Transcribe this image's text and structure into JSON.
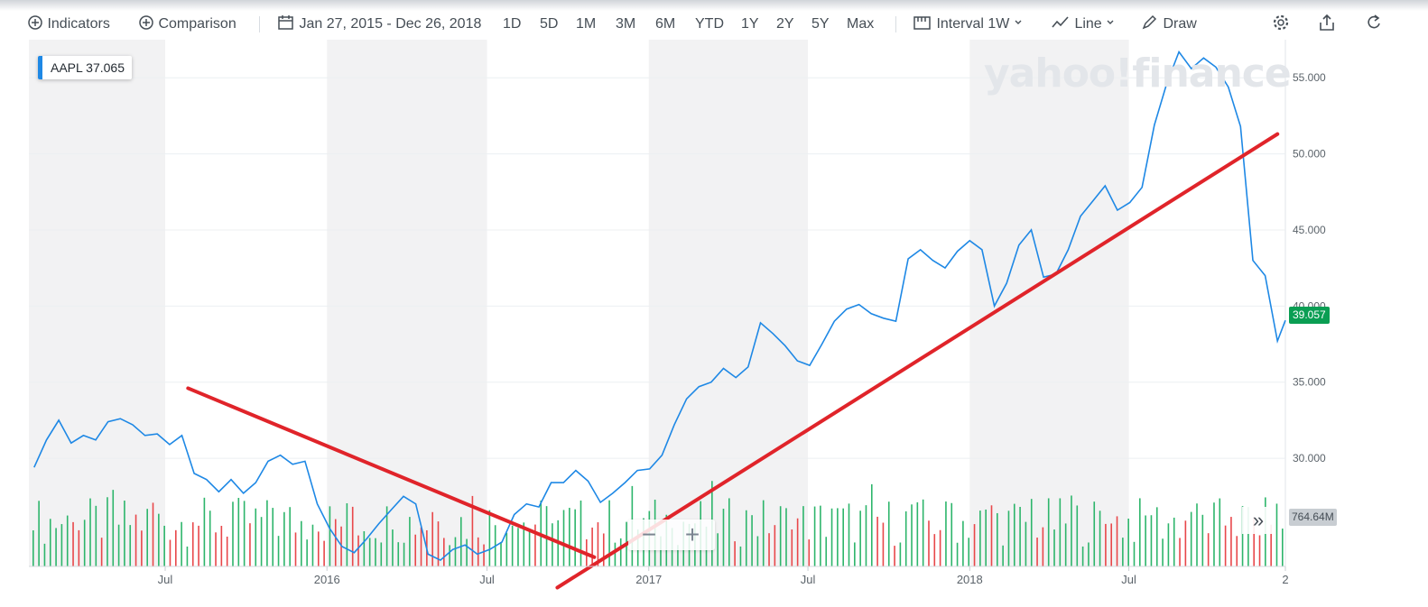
{
  "toolbar": {
    "indicators": "Indicators",
    "comparison": "Comparison",
    "date_range": "Jan 27, 2015 - Dec 26, 2018",
    "ranges": [
      "1D",
      "5D",
      "1M",
      "3M",
      "6M",
      "YTD",
      "1Y",
      "2Y",
      "5Y",
      "Max"
    ],
    "interval_label": "Interval",
    "interval_value": "1W",
    "chart_type": "Line",
    "draw": "Draw"
  },
  "watermark": "yahoo!finance",
  "ticker": {
    "symbol": "AAPL",
    "value": "37.065"
  },
  "last_price": "39.057",
  "volume_label": "764.64M",
  "zoom": {
    "minus": "−",
    "plus": "+"
  },
  "expand": "»",
  "colors": {
    "price_line": "#1e88e5",
    "volume_up": "#2db56b",
    "volume_down": "#e8474a",
    "trendline": "#e0242a",
    "price_badge": "#0a9e53",
    "shade": "#f2f2f3"
  },
  "chart_data": {
    "type": "line",
    "series": [
      {
        "name": "AAPL",
        "x": [
          "2015-02-02",
          "2015-02-16",
          "2015-03-02",
          "2015-03-16",
          "2015-03-30",
          "2015-04-13",
          "2015-04-27",
          "2015-05-11",
          "2015-05-25",
          "2015-06-08",
          "2015-06-22",
          "2015-07-06",
          "2015-07-20",
          "2015-08-03",
          "2015-08-17",
          "2015-08-31",
          "2015-09-14",
          "2015-09-28",
          "2015-10-12",
          "2015-10-26",
          "2015-11-09",
          "2015-11-23",
          "2015-12-07",
          "2015-12-21",
          "2016-01-04",
          "2016-01-18",
          "2016-02-01",
          "2016-02-15",
          "2016-02-29",
          "2016-03-14",
          "2016-03-28",
          "2016-04-11",
          "2016-04-25",
          "2016-05-09",
          "2016-05-23",
          "2016-06-06",
          "2016-06-20",
          "2016-07-04",
          "2016-07-18",
          "2016-08-01",
          "2016-08-15",
          "2016-08-29",
          "2016-09-12",
          "2016-09-26",
          "2016-10-10",
          "2016-10-24",
          "2016-11-07",
          "2016-11-21",
          "2016-12-05",
          "2016-12-19",
          "2017-01-02",
          "2017-01-16",
          "2017-01-30",
          "2017-02-13",
          "2017-02-27",
          "2017-03-13",
          "2017-03-27",
          "2017-04-10",
          "2017-04-24",
          "2017-05-08",
          "2017-05-22",
          "2017-06-05",
          "2017-06-19",
          "2017-07-03",
          "2017-07-17",
          "2017-07-31",
          "2017-08-14",
          "2017-08-28",
          "2017-09-11",
          "2017-09-25",
          "2017-10-09",
          "2017-10-23",
          "2017-11-06",
          "2017-11-20",
          "2017-12-04",
          "2017-12-18",
          "2018-01-01",
          "2018-01-15",
          "2018-01-29",
          "2018-02-12",
          "2018-02-26",
          "2018-03-12",
          "2018-03-26",
          "2018-04-09",
          "2018-04-23",
          "2018-05-07",
          "2018-05-21",
          "2018-06-04",
          "2018-06-18",
          "2018-07-02",
          "2018-07-16",
          "2018-07-30",
          "2018-08-13",
          "2018-08-27",
          "2018-09-10",
          "2018-09-24",
          "2018-10-08",
          "2018-10-22",
          "2018-11-05",
          "2018-11-19",
          "2018-12-03",
          "2018-12-17",
          "2018-12-26"
        ],
        "y": [
          29.4,
          31.2,
          32.5,
          31.0,
          31.5,
          31.2,
          32.4,
          32.6,
          32.2,
          31.5,
          31.6,
          30.9,
          31.5,
          29.0,
          28.6,
          27.8,
          28.6,
          27.7,
          28.4,
          29.8,
          30.2,
          29.6,
          29.8,
          27.0,
          25.4,
          24.2,
          23.8,
          24.7,
          25.7,
          26.6,
          27.5,
          27.0,
          23.7,
          23.3,
          24.0,
          24.3,
          23.7,
          24.0,
          24.5,
          26.3,
          27.0,
          26.8,
          28.4,
          28.4,
          29.2,
          28.5,
          27.1,
          27.7,
          28.4,
          29.2,
          29.3,
          30.2,
          32.2,
          33.9,
          34.7,
          35.0,
          35.9,
          35.3,
          36.0,
          38.9,
          38.2,
          37.4,
          36.4,
          36.1,
          37.5,
          39.0,
          39.8,
          40.1,
          39.5,
          39.2,
          39.0,
          43.1,
          43.7,
          43.0,
          42.5,
          43.6,
          44.3,
          43.7,
          40.0,
          41.5,
          44.0,
          45.0,
          41.9,
          42.1,
          43.7,
          45.9,
          46.9,
          47.9,
          46.3,
          46.8,
          47.8,
          51.9,
          54.6,
          56.7,
          55.6,
          56.3,
          55.7,
          54.4,
          51.8,
          43.0,
          42.0,
          37.7,
          39.057
        ]
      }
    ],
    "volume": {
      "unit": "shares",
      "last": "764.64M"
    },
    "x_ticks": [
      "Jul",
      "2016",
      "Jul",
      "2017",
      "Jul",
      "2018",
      "Jul",
      "2"
    ],
    "y_ticks": [
      "30.000",
      "35.000",
      "40.000",
      "45.000",
      "50.000",
      "55.000"
    ],
    "ylim": [
      25.5,
      57.5
    ],
    "grid": true,
    "annotations": [
      {
        "type": "trendline",
        "from": {
          "x": "2015-07-27",
          "y": 34.6
        },
        "to": {
          "x": "2016-10-31",
          "y": 23.5
        }
      },
      {
        "type": "trendline",
        "from": {
          "x": "2016-09-19",
          "y": 21.5
        },
        "to": {
          "x": "2018-12-17",
          "y": 51.3
        }
      }
    ]
  }
}
